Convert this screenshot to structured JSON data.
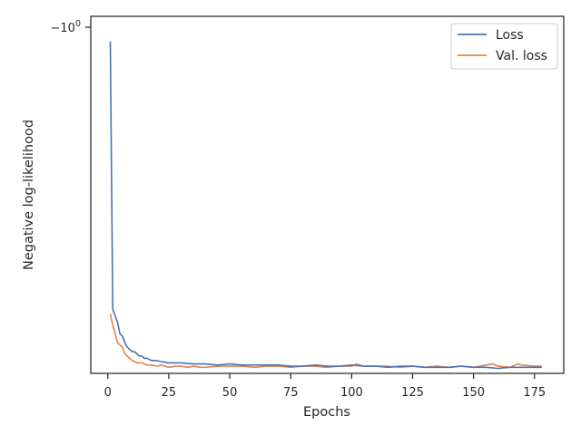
{
  "chart_data": {
    "type": "line",
    "xlabel": "Epochs",
    "ylabel": "Negative log-likelihood",
    "xlim": [
      -7,
      187
    ],
    "x_ticks": [
      0,
      25,
      50,
      75,
      100,
      125,
      150,
      175
    ],
    "y_scale": "symlog (negated values)",
    "y_tick_label": "-10^0",
    "ylim": [
      -1.0,
      -2.6
    ],
    "grid": false,
    "legend": "top-right",
    "colors": {
      "Loss": "#4c72b0",
      "Val. loss": "#dd8452"
    },
    "series": [
      {
        "name": "Loss",
        "x": [
          1,
          2,
          3,
          4,
          5,
          6,
          7,
          8,
          9,
          10,
          11,
          12,
          13,
          14,
          15,
          16,
          17,
          18,
          19,
          20,
          22,
          25,
          30,
          35,
          40,
          45,
          50,
          55,
          60,
          65,
          70,
          75,
          80,
          85,
          90,
          95,
          100,
          105,
          110,
          115,
          120,
          125,
          130,
          135,
          140,
          145,
          150,
          155,
          160,
          165,
          170,
          175,
          178
        ],
        "y": [
          -1.06,
          -2.26,
          -2.29,
          -2.32,
          -2.37,
          -2.38,
          -2.41,
          -2.43,
          -2.44,
          -2.45,
          -2.45,
          -2.46,
          -2.47,
          -2.47,
          -2.48,
          -2.48,
          -2.485,
          -2.49,
          -2.49,
          -2.49,
          -2.495,
          -2.5,
          -2.5,
          -2.505,
          -2.505,
          -2.51,
          -2.505,
          -2.51,
          -2.51,
          -2.51,
          -2.51,
          -2.515,
          -2.515,
          -2.51,
          -2.515,
          -2.515,
          -2.51,
          -2.515,
          -2.515,
          -2.52,
          -2.515,
          -2.515,
          -2.52,
          -2.52,
          -2.52,
          -2.515,
          -2.52,
          -2.52,
          -2.525,
          -2.52,
          -2.52,
          -2.52,
          -2.52
        ]
      },
      {
        "name": "Val. loss",
        "x": [
          1,
          2,
          3,
          4,
          5,
          6,
          7,
          8,
          9,
          10,
          12,
          14,
          16,
          18,
          20,
          22,
          25,
          28,
          30,
          33,
          35,
          38,
          40,
          45,
          50,
          55,
          60,
          65,
          70,
          75,
          80,
          85,
          90,
          95,
          100,
          102,
          105,
          110,
          115,
          120,
          125,
          130,
          135,
          140,
          145,
          150,
          155,
          158,
          160,
          165,
          168,
          170,
          175,
          178
        ],
        "y": [
          -2.28,
          -2.33,
          -2.37,
          -2.41,
          -2.42,
          -2.43,
          -2.46,
          -2.47,
          -2.48,
          -2.49,
          -2.5,
          -2.5,
          -2.51,
          -2.51,
          -2.515,
          -2.51,
          -2.52,
          -2.515,
          -2.515,
          -2.52,
          -2.515,
          -2.52,
          -2.52,
          -2.515,
          -2.515,
          -2.515,
          -2.52,
          -2.515,
          -2.515,
          -2.52,
          -2.515,
          -2.515,
          -2.52,
          -2.515,
          -2.515,
          -2.505,
          -2.515,
          -2.515,
          -2.515,
          -2.52,
          -2.515,
          -2.52,
          -2.515,
          -2.52,
          -2.515,
          -2.52,
          -2.51,
          -2.505,
          -2.515,
          -2.52,
          -2.505,
          -2.51,
          -2.515,
          -2.515
        ]
      }
    ]
  }
}
